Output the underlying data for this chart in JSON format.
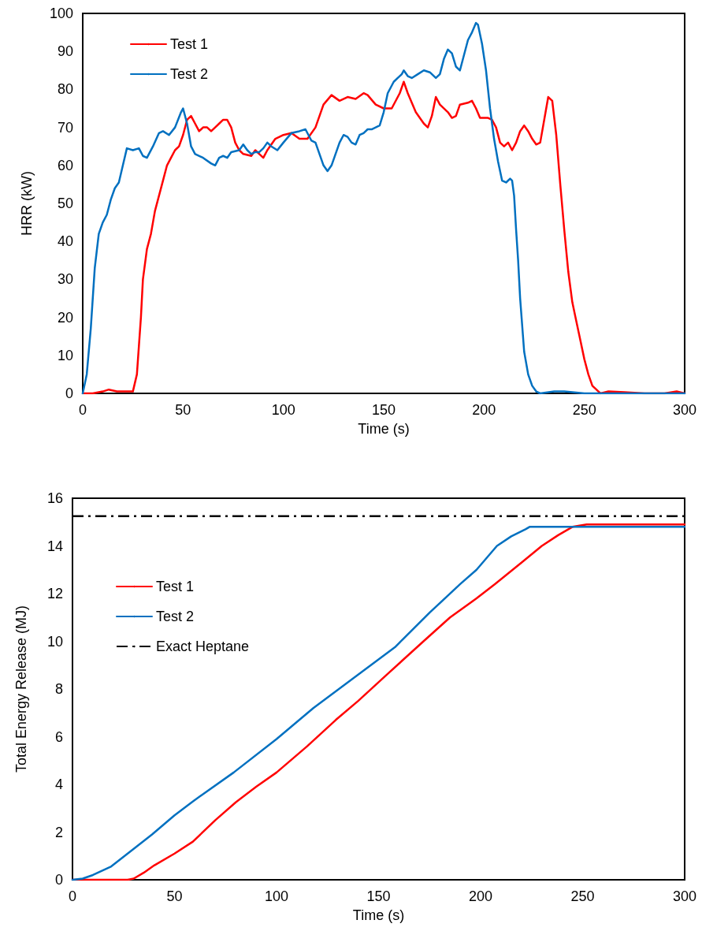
{
  "chart_data": [
    {
      "type": "line",
      "xlabel": "Time (s)",
      "ylabel": "HRR (kW)",
      "xlim": [
        0,
        300
      ],
      "xticks": [
        0,
        50,
        100,
        150,
        200,
        250,
        300
      ],
      "ylim": [
        0,
        100
      ],
      "yticks": [
        0,
        10,
        20,
        30,
        40,
        50,
        60,
        70,
        80,
        90,
        100
      ],
      "grid": false,
      "legend": "top left",
      "marker": "none",
      "line_style": "solid",
      "series": [
        {
          "name": "Test 1",
          "color": "#ff0000",
          "x": [
            0,
            5,
            10,
            13,
            17,
            22,
            25,
            27,
            29,
            30,
            32,
            34,
            36,
            38,
            40,
            42,
            44,
            46,
            48,
            50,
            52,
            54,
            56,
            58,
            60,
            62,
            64,
            66,
            68,
            70,
            72,
            74,
            76,
            78,
            80,
            84,
            86,
            88,
            90,
            92,
            96,
            100,
            104,
            108,
            112,
            116,
            118,
            120,
            124,
            128,
            132,
            136,
            140,
            142,
            146,
            150,
            154,
            158,
            160,
            162,
            166,
            170,
            172,
            174,
            176,
            178,
            182,
            184,
            186,
            188,
            192,
            194,
            196,
            198,
            202,
            204,
            206,
            208,
            210,
            212,
            214,
            216,
            218,
            220,
            222,
            224,
            226,
            228,
            230,
            232,
            234,
            236,
            238,
            240,
            242,
            244,
            246,
            248,
            250,
            252,
            254,
            256,
            258,
            262,
            270,
            280,
            290,
            296,
            300
          ],
          "values": [
            0,
            0,
            0.5,
            1,
            0.5,
            0.5,
            0.5,
            5,
            20,
            30,
            38,
            42,
            48,
            52,
            56,
            60,
            62,
            64,
            65,
            68,
            72,
            73,
            71,
            69,
            70,
            70,
            69,
            70,
            71,
            72,
            72,
            70,
            66,
            64,
            63,
            62.5,
            64,
            63,
            62,
            64,
            67,
            68,
            68.5,
            67,
            67,
            70,
            73,
            76,
            78.5,
            77,
            78,
            77.5,
            79,
            78.5,
            76,
            75,
            75,
            79,
            82,
            79,
            74,
            71,
            70,
            73,
            78,
            76,
            74,
            72.5,
            73,
            76,
            76.5,
            77,
            75,
            72.5,
            72.5,
            72,
            70,
            66,
            65,
            66,
            64,
            66,
            69,
            70.5,
            69,
            67,
            65.5,
            66,
            72,
            78,
            77,
            68,
            55,
            43,
            32,
            24,
            19,
            14,
            9,
            5,
            2,
            1,
            0,
            0.5,
            0.3,
            0,
            0,
            0.5,
            0
          ]
        },
        {
          "name": "Test 2",
          "color": "#0070c0",
          "x": [
            0,
            2,
            4,
            6,
            8,
            10,
            12,
            14,
            16,
            18,
            20,
            22,
            25,
            28,
            30,
            32,
            35,
            38,
            40,
            43,
            46,
            49,
            50,
            52,
            54,
            56,
            60,
            64,
            66,
            68,
            70,
            72,
            74,
            78,
            80,
            82,
            84,
            86,
            88,
            90,
            92,
            94,
            97,
            100,
            104,
            108,
            111,
            114,
            116,
            118,
            120,
            122,
            124,
            126,
            128,
            130,
            132,
            134,
            136,
            138,
            140,
            142,
            144,
            146,
            148,
            150,
            152,
            155,
            157,
            159,
            160,
            162,
            164,
            167,
            170,
            173,
            176,
            178,
            180,
            182,
            184,
            186,
            188,
            190,
            192,
            194,
            196,
            197,
            199,
            201,
            203,
            205,
            207,
            209,
            211,
            213,
            214,
            215,
            216,
            217,
            218,
            219,
            220,
            222,
            224,
            226,
            228,
            235,
            240,
            250,
            260,
            280,
            300
          ],
          "values": [
            0,
            5,
            17,
            33,
            42,
            45,
            47,
            51,
            54,
            55.5,
            60,
            64.5,
            64,
            64.5,
            62.5,
            62,
            65,
            68.5,
            69,
            68,
            70,
            74,
            75,
            71,
            65,
            63,
            62,
            60.5,
            60,
            62,
            62.5,
            62,
            63.5,
            64,
            65.5,
            64,
            63,
            63.5,
            63.5,
            64.5,
            66,
            65,
            64,
            66,
            68.5,
            69,
            69.5,
            66.5,
            66,
            63,
            60,
            58.5,
            60,
            63,
            66,
            68,
            67.5,
            66,
            65.5,
            68,
            68.5,
            69.5,
            69.5,
            70,
            70.5,
            74,
            79,
            82,
            83,
            84,
            85,
            83.5,
            83,
            84,
            85,
            84.5,
            83,
            84,
            88,
            90.5,
            89.5,
            86,
            85,
            89,
            93,
            95,
            97.5,
            97,
            92,
            85,
            75,
            67,
            61,
            56,
            55.5,
            56.5,
            56,
            52,
            43,
            35,
            25,
            18,
            11,
            5,
            2,
            0.5,
            0,
            0.5,
            0.5,
            0,
            0,
            0,
            0
          ]
        }
      ]
    },
    {
      "type": "line",
      "xlabel": "Time (s)",
      "ylabel": "Total Energy Release (MJ)",
      "xlim": [
        0,
        300
      ],
      "xticks": [
        0,
        50,
        100,
        150,
        200,
        250,
        300
      ],
      "ylim": [
        0,
        16
      ],
      "yticks": [
        0,
        2,
        4,
        6,
        8,
        10,
        12,
        14,
        16
      ],
      "grid": false,
      "legend": "top left",
      "marker": "none",
      "line_style": "solid",
      "series": [
        {
          "name": "Test 1",
          "color": "#ff0000",
          "x": [
            0,
            27,
            30,
            35,
            40,
            50,
            59,
            70,
            80,
            90,
            100,
            115,
            129,
            140,
            154,
            172,
            185,
            198,
            207,
            220,
            230,
            238,
            245,
            252,
            300
          ],
          "values": [
            0,
            0,
            0.05,
            0.3,
            0.6,
            1.1,
            1.6,
            2.5,
            3.25,
            3.9,
            4.5,
            5.6,
            6.7,
            7.5,
            8.6,
            10.0,
            11.0,
            11.8,
            12.4,
            13.3,
            14.0,
            14.45,
            14.8,
            14.9,
            14.9
          ]
        },
        {
          "name": "Test 2",
          "color": "#0070c0",
          "x": [
            0,
            5,
            10,
            19,
            30,
            39,
            50,
            60,
            79,
            100,
            118,
            140,
            158,
            175,
            190,
            198,
            208,
            215,
            222,
            224,
            300
          ],
          "values": [
            0,
            0.05,
            0.2,
            0.56,
            1.3,
            1.9,
            2.7,
            3.35,
            4.5,
            5.9,
            7.2,
            8.6,
            9.75,
            11.2,
            12.4,
            13.0,
            14.0,
            14.4,
            14.7,
            14.8,
            14.8
          ]
        }
      ],
      "ref_lines": [
        {
          "axis": "y",
          "value": 15.25,
          "label": "Exact Heptane",
          "color": "#000000",
          "line_style": "dashdot"
        }
      ]
    }
  ]
}
